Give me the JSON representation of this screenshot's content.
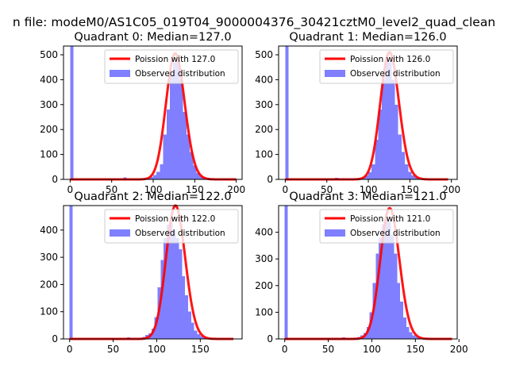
{
  "figure": {
    "suptitle": "n file: modeM0/AS1C05_019T04_9000004376_30421cztM0_level2_quad_clean",
    "observed_color": "#7f7fff",
    "fit_color": "#ff0000"
  },
  "chart_data": [
    {
      "type": "bar",
      "title": "Quadrant 0: Median=127.0",
      "xlabel": "",
      "ylabel": "",
      "xlim": [
        -8,
        207
      ],
      "ylim": [
        0,
        535
      ],
      "xticks": [
        0,
        50,
        100,
        150,
        200
      ],
      "yticks": [
        0,
        100,
        200,
        300,
        400,
        500
      ],
      "legend_position": "upper right",
      "series": [
        {
          "name": "Poission with 127.0",
          "kind": "poisson_line",
          "lambda": 127.0,
          "peak": 505,
          "x_range": [
            0,
            200
          ]
        },
        {
          "name": "Observed distribution",
          "kind": "histogram",
          "bins": [
            [
              0,
              4,
              535
            ],
            [
              64,
              68,
              8
            ],
            [
              88,
              92,
              4
            ],
            [
              92,
              96,
              6
            ],
            [
              96,
              100,
              10
            ],
            [
              100,
              104,
              18
            ],
            [
              104,
              108,
              30
            ],
            [
              108,
              112,
              60
            ],
            [
              112,
              116,
              180
            ],
            [
              116,
              120,
              280
            ],
            [
              120,
              124,
              420
            ],
            [
              124,
              128,
              470
            ],
            [
              128,
              132,
              470
            ],
            [
              132,
              136,
              400
            ],
            [
              136,
              140,
              270
            ],
            [
              140,
              144,
              180
            ],
            [
              144,
              148,
              110
            ],
            [
              148,
              152,
              55
            ],
            [
              152,
              156,
              25
            ],
            [
              156,
              160,
              14
            ],
            [
              160,
              164,
              10
            ],
            [
              164,
              168,
              6
            ],
            [
              168,
              172,
              4
            ]
          ]
        }
      ]
    },
    {
      "type": "bar",
      "title": "Quadrant 1: Median=126.0",
      "xlabel": "",
      "ylabel": "",
      "xlim": [
        -8,
        207
      ],
      "ylim": [
        0,
        535
      ],
      "xticks": [
        0,
        50,
        100,
        150,
        200
      ],
      "yticks": [
        0,
        100,
        200,
        300,
        400,
        500
      ],
      "legend_position": "upper right",
      "series": [
        {
          "name": "Poission with 126.0",
          "kind": "poisson_line",
          "lambda": 126.0,
          "peak": 510,
          "x_range": [
            0,
            196
          ]
        },
        {
          "name": "Observed distribution",
          "kind": "histogram",
          "bins": [
            [
              0,
              4,
              535
            ],
            [
              60,
              64,
              6
            ],
            [
              84,
              88,
              4
            ],
            [
              88,
              92,
              6
            ],
            [
              92,
              96,
              10
            ],
            [
              96,
              100,
              16
            ],
            [
              100,
              104,
              28
            ],
            [
              104,
              108,
              60
            ],
            [
              108,
              112,
              160
            ],
            [
              112,
              116,
              280
            ],
            [
              116,
              120,
              400
            ],
            [
              120,
              124,
              480
            ],
            [
              124,
              128,
              470
            ],
            [
              128,
              132,
              400
            ],
            [
              132,
              136,
              300
            ],
            [
              136,
              140,
              180
            ],
            [
              140,
              144,
              110
            ],
            [
              144,
              148,
              60
            ],
            [
              148,
              152,
              30
            ],
            [
              152,
              156,
              16
            ],
            [
              156,
              160,
              10
            ],
            [
              160,
              164,
              6
            ],
            [
              164,
              168,
              4
            ]
          ]
        }
      ]
    },
    {
      "type": "bar",
      "title": "Quadrant 2: Median=122.0",
      "xlabel": "",
      "ylabel": "",
      "xlim": [
        -7,
        198
      ],
      "ylim": [
        0,
        490
      ],
      "xticks": [
        0,
        50,
        100,
        150
      ],
      "yticks": [
        0,
        100,
        200,
        300,
        400
      ],
      "legend_position": "upper right",
      "series": [
        {
          "name": "Poission with 122.0",
          "kind": "poisson_line",
          "lambda": 122.0,
          "peak": 490,
          "x_range": [
            0,
            188
          ]
        },
        {
          "name": "Observed distribution",
          "kind": "histogram",
          "bins": [
            [
              0,
              3.5,
              490
            ],
            [
              66,
              69.5,
              6
            ],
            [
              80,
              83.5,
              4
            ],
            [
              83.5,
              87,
              8
            ],
            [
              87,
              90.5,
              14
            ],
            [
              90.5,
              94,
              20
            ],
            [
              94,
              97.5,
              38
            ],
            [
              97.5,
              101,
              80
            ],
            [
              101,
              104.5,
              190
            ],
            [
              104.5,
              108,
              290
            ],
            [
              108,
              111.5,
              370
            ],
            [
              111.5,
              115,
              420
            ],
            [
              115,
              118.5,
              430
            ],
            [
              118.5,
              122,
              400
            ],
            [
              122,
              125.5,
              370
            ],
            [
              125.5,
              129,
              330
            ],
            [
              129,
              132.5,
              230
            ],
            [
              132.5,
              136,
              160
            ],
            [
              136,
              139.5,
              100
            ],
            [
              139.5,
              143,
              60
            ],
            [
              143,
              146.5,
              30
            ],
            [
              146.5,
              150,
              18
            ],
            [
              150,
              153.5,
              10
            ],
            [
              153.5,
              157,
              6
            ]
          ]
        }
      ]
    },
    {
      "type": "bar",
      "title": "Quadrant 3: Median=121.0",
      "xlabel": "",
      "ylabel": "",
      "xlim": [
        -7,
        198
      ],
      "ylim": [
        0,
        500
      ],
      "xticks": [
        0,
        50,
        100,
        150,
        200
      ],
      "yticks": [
        0,
        100,
        200,
        300,
        400
      ],
      "legend_position": "upper right",
      "series": [
        {
          "name": "Poission with 121.0",
          "kind": "poisson_line",
          "lambda": 121.0,
          "peak": 490,
          "x_range": [
            0,
            192
          ]
        },
        {
          "name": "Observed distribution",
          "kind": "histogram",
          "bins": [
            [
              0,
              3.5,
              500
            ],
            [
              66,
              69.5,
              6
            ],
            [
              80,
              83.5,
              4
            ],
            [
              83.5,
              87,
              8
            ],
            [
              87,
              90.5,
              14
            ],
            [
              90.5,
              94,
              22
            ],
            [
              94,
              97.5,
              45
            ],
            [
              97.5,
              101,
              100
            ],
            [
              101,
              104.5,
              210
            ],
            [
              104.5,
              108,
              320
            ],
            [
              108,
              111.5,
              380
            ],
            [
              111.5,
              115,
              430
            ],
            [
              115,
              118.5,
              470
            ],
            [
              118.5,
              122,
              440
            ],
            [
              122,
              125.5,
              390
            ],
            [
              125.5,
              129,
              320
            ],
            [
              129,
              132.5,
              210
            ],
            [
              132.5,
              136,
              140
            ],
            [
              136,
              139.5,
              80
            ],
            [
              139.5,
              143,
              45
            ],
            [
              143,
              146.5,
              25
            ],
            [
              146.5,
              150,
              14
            ],
            [
              150,
              153.5,
              8
            ],
            [
              153.5,
              157,
              5
            ]
          ]
        }
      ]
    }
  ]
}
